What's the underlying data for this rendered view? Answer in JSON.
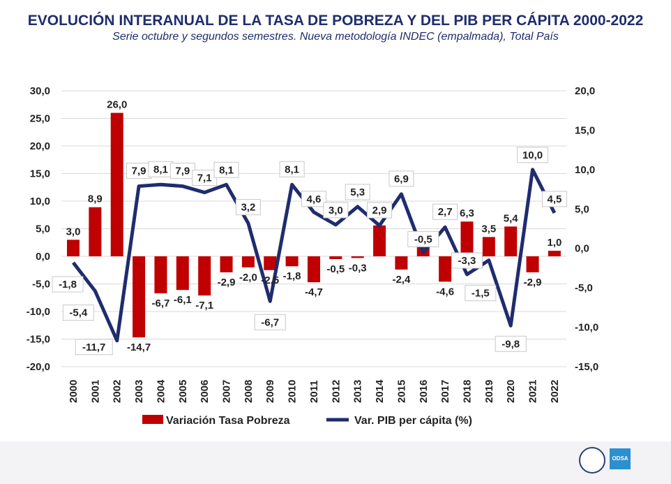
{
  "chart_data": {
    "type": "bar+line",
    "title": "EVOLUCIÓN INTERANUAL DE LA TASA DE POBREZA Y DEL PIB PER CÁPITA 2000-2022",
    "subtitle": "Serie octubre y segundos semestres. Nueva metodología INDEC (empalmada), Total País",
    "categories": [
      "2000",
      "2001",
      "2002",
      "2003",
      "2004",
      "2005",
      "2006",
      "2007",
      "2008",
      "2009",
      "2010",
      "2011",
      "2012",
      "2013",
      "2014",
      "2015",
      "2016",
      "2017",
      "2018",
      "2019",
      "2020",
      "2021",
      "2022"
    ],
    "left_axis": {
      "ylim": [
        -20,
        30
      ],
      "ticks": [
        "-20,0",
        "-15,0",
        "-10,0",
        "-5,0",
        "0,0",
        "5,0",
        "10,0",
        "15,0",
        "20,0",
        "25,0",
        "30,0"
      ]
    },
    "right_axis": {
      "ylim": [
        -15,
        20
      ],
      "ticks": [
        "-15,0",
        "-10,0",
        "-5,0",
        "0,0",
        "5,0",
        "10,0",
        "15,0",
        "20,0"
      ]
    },
    "grid": true,
    "legend_position": "bottom",
    "series": [
      {
        "name": "Variación Tasa Pobreza",
        "type": "bar",
        "axis": "left",
        "color": "#c00000",
        "values": [
          3.0,
          8.9,
          26.0,
          -14.7,
          -6.7,
          -6.1,
          -7.1,
          -2.9,
          -2.0,
          -2.5,
          -1.8,
          -4.7,
          -0.5,
          -0.3,
          5.6,
          -2.4,
          2.4,
          -4.6,
          6.3,
          3.5,
          5.4,
          -2.9,
          1.0
        ],
        "labels": [
          "3,0",
          "8,9",
          "26,0",
          "-14,7",
          "-6,7",
          "-6,1",
          "-7,1",
          "-2,9",
          "-2,0",
          "-2,5",
          "-1,8",
          "-4,7",
          "-0,5",
          "-0,3",
          "",
          "-2,4",
          "",
          "-4,6",
          "6,3",
          "3,5",
          "5,4",
          "-2,9",
          "1,0"
        ]
      },
      {
        "name": "Var. PIB per cápita (%)",
        "type": "line",
        "axis": "right",
        "color": "#1f2d6e",
        "values": [
          -1.8,
          -5.4,
          -11.7,
          7.9,
          8.1,
          7.9,
          7.1,
          8.1,
          3.2,
          -6.7,
          8.1,
          4.6,
          3.0,
          5.3,
          2.9,
          6.9,
          -0.5,
          2.7,
          -3.3,
          -1.5,
          -9.8,
          10.0,
          4.5
        ],
        "labels": [
          "-1,8",
          "-5,4",
          "-11,7",
          "7,9",
          "8,1",
          "7,9",
          "7,1",
          "8,1",
          "3,2",
          "-6,7",
          "8,1",
          "4,6",
          "3,0",
          "5,3",
          "2,9",
          "6,9",
          "-0,5",
          "2,7",
          "-3,3",
          "-1,5",
          "-9,8",
          "10,0",
          "4,5"
        ]
      }
    ]
  },
  "footer": {
    "logo_text": "ODSA"
  }
}
